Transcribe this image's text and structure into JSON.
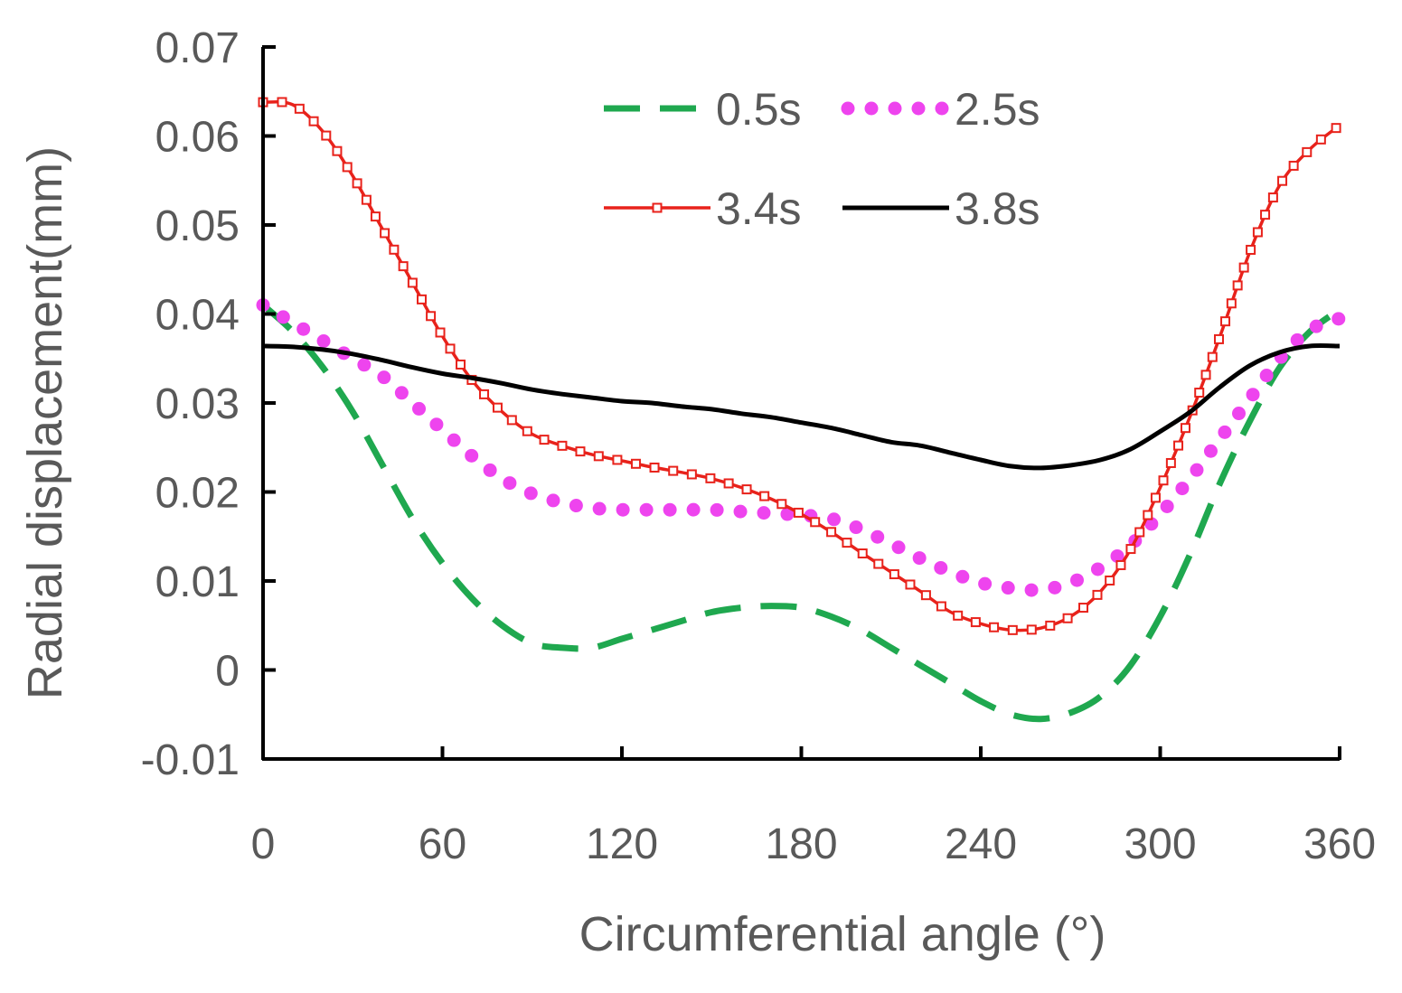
{
  "chart_data": {
    "type": "line",
    "title": "",
    "xlabel": "Circumferential angle (°)",
    "ylabel": "Radial displacement(mm)",
    "xlim": [
      0,
      360
    ],
    "ylim": [
      -0.01,
      0.07
    ],
    "xticks": [
      0,
      60,
      120,
      180,
      240,
      300,
      360
    ],
    "xtick_labels": [
      "0",
      "60",
      "120",
      "180",
      "240",
      "300",
      "360"
    ],
    "yticks": [
      -0.01,
      0,
      0.01,
      0.02,
      0.03,
      0.04,
      0.05,
      0.06,
      0.07
    ],
    "ytick_labels": [
      "-0.01",
      "0",
      "0.01",
      "0.02",
      "0.03",
      "0.04",
      "0.05",
      "0.06",
      "0.07"
    ],
    "grid": false,
    "legend_position": "top-right",
    "series": [
      {
        "name": "0.5s",
        "style": "dashed",
        "color": "#1fa84f",
        "x": [
          0,
          10,
          20,
          30,
          40,
          50,
          60,
          70,
          80,
          90,
          100,
          110,
          120,
          130,
          140,
          150,
          160,
          170,
          180,
          190,
          200,
          210,
          220,
          230,
          240,
          250,
          260,
          270,
          280,
          290,
          300,
          310,
          320,
          330,
          340,
          350,
          360
        ],
        "y": [
          0.041,
          0.038,
          0.034,
          0.029,
          0.023,
          0.017,
          0.012,
          0.008,
          0.005,
          0.003,
          0.0025,
          0.0025,
          0.0035,
          0.0045,
          0.0055,
          0.0065,
          0.007,
          0.0072,
          0.007,
          0.006,
          0.0045,
          0.0025,
          0.0005,
          -0.0015,
          -0.0035,
          -0.005,
          -0.0055,
          -0.0048,
          -0.003,
          0.0005,
          0.006,
          0.013,
          0.021,
          0.028,
          0.034,
          0.038,
          0.0405
        ]
      },
      {
        "name": "2.5s",
        "style": "dotted",
        "color": "#ee44ee",
        "x": [
          0,
          10,
          20,
          30,
          40,
          50,
          60,
          70,
          80,
          90,
          100,
          110,
          120,
          130,
          140,
          150,
          160,
          170,
          180,
          190,
          200,
          210,
          220,
          230,
          240,
          250,
          260,
          270,
          280,
          290,
          300,
          310,
          320,
          330,
          340,
          350,
          360
        ],
        "y": [
          0.041,
          0.039,
          0.037,
          0.035,
          0.033,
          0.03,
          0.027,
          0.024,
          0.0215,
          0.0198,
          0.0188,
          0.0182,
          0.018,
          0.018,
          0.018,
          0.018,
          0.0178,
          0.0176,
          0.0174,
          0.017,
          0.0158,
          0.0142,
          0.0125,
          0.011,
          0.0098,
          0.0092,
          0.009,
          0.0098,
          0.0115,
          0.014,
          0.0175,
          0.0215,
          0.026,
          0.0305,
          0.035,
          0.0382,
          0.0395
        ]
      },
      {
        "name": "3.4s",
        "style": "solid-square-markers",
        "color": "#e8221b",
        "x": [
          0,
          10,
          20,
          30,
          40,
          50,
          60,
          70,
          80,
          90,
          100,
          110,
          120,
          130,
          140,
          150,
          160,
          170,
          180,
          190,
          200,
          210,
          220,
          230,
          240,
          250,
          260,
          270,
          280,
          290,
          300,
          310,
          320,
          330,
          340,
          350,
          360
        ],
        "y": [
          0.0638,
          0.0635,
          0.0605,
          0.0555,
          0.0495,
          0.0435,
          0.0375,
          0.0325,
          0.029,
          0.0265,
          0.0252,
          0.0242,
          0.0235,
          0.0228,
          0.0222,
          0.0215,
          0.0205,
          0.0192,
          0.0175,
          0.0155,
          0.0132,
          0.011,
          0.0088,
          0.0065,
          0.0052,
          0.0045,
          0.0047,
          0.006,
          0.0088,
          0.0135,
          0.0205,
          0.0285,
          0.0375,
          0.047,
          0.0545,
          0.0585,
          0.0612
        ]
      },
      {
        "name": "3.8s",
        "style": "solid",
        "color": "#000000",
        "x": [
          0,
          10,
          20,
          30,
          40,
          50,
          60,
          70,
          80,
          90,
          100,
          110,
          120,
          130,
          140,
          150,
          160,
          170,
          180,
          190,
          200,
          210,
          220,
          230,
          240,
          250,
          260,
          270,
          280,
          290,
          300,
          310,
          320,
          330,
          340,
          350,
          360
        ],
        "y": [
          0.0364,
          0.0363,
          0.036,
          0.0355,
          0.0348,
          0.034,
          0.0333,
          0.0328,
          0.0322,
          0.0315,
          0.031,
          0.0306,
          0.0302,
          0.03,
          0.0296,
          0.0293,
          0.0288,
          0.0284,
          0.0278,
          0.0272,
          0.0264,
          0.0256,
          0.0252,
          0.0244,
          0.0236,
          0.0229,
          0.0227,
          0.023,
          0.0236,
          0.0248,
          0.0268,
          0.029,
          0.0318,
          0.0342,
          0.0357,
          0.0364,
          0.0364
        ]
      }
    ]
  }
}
